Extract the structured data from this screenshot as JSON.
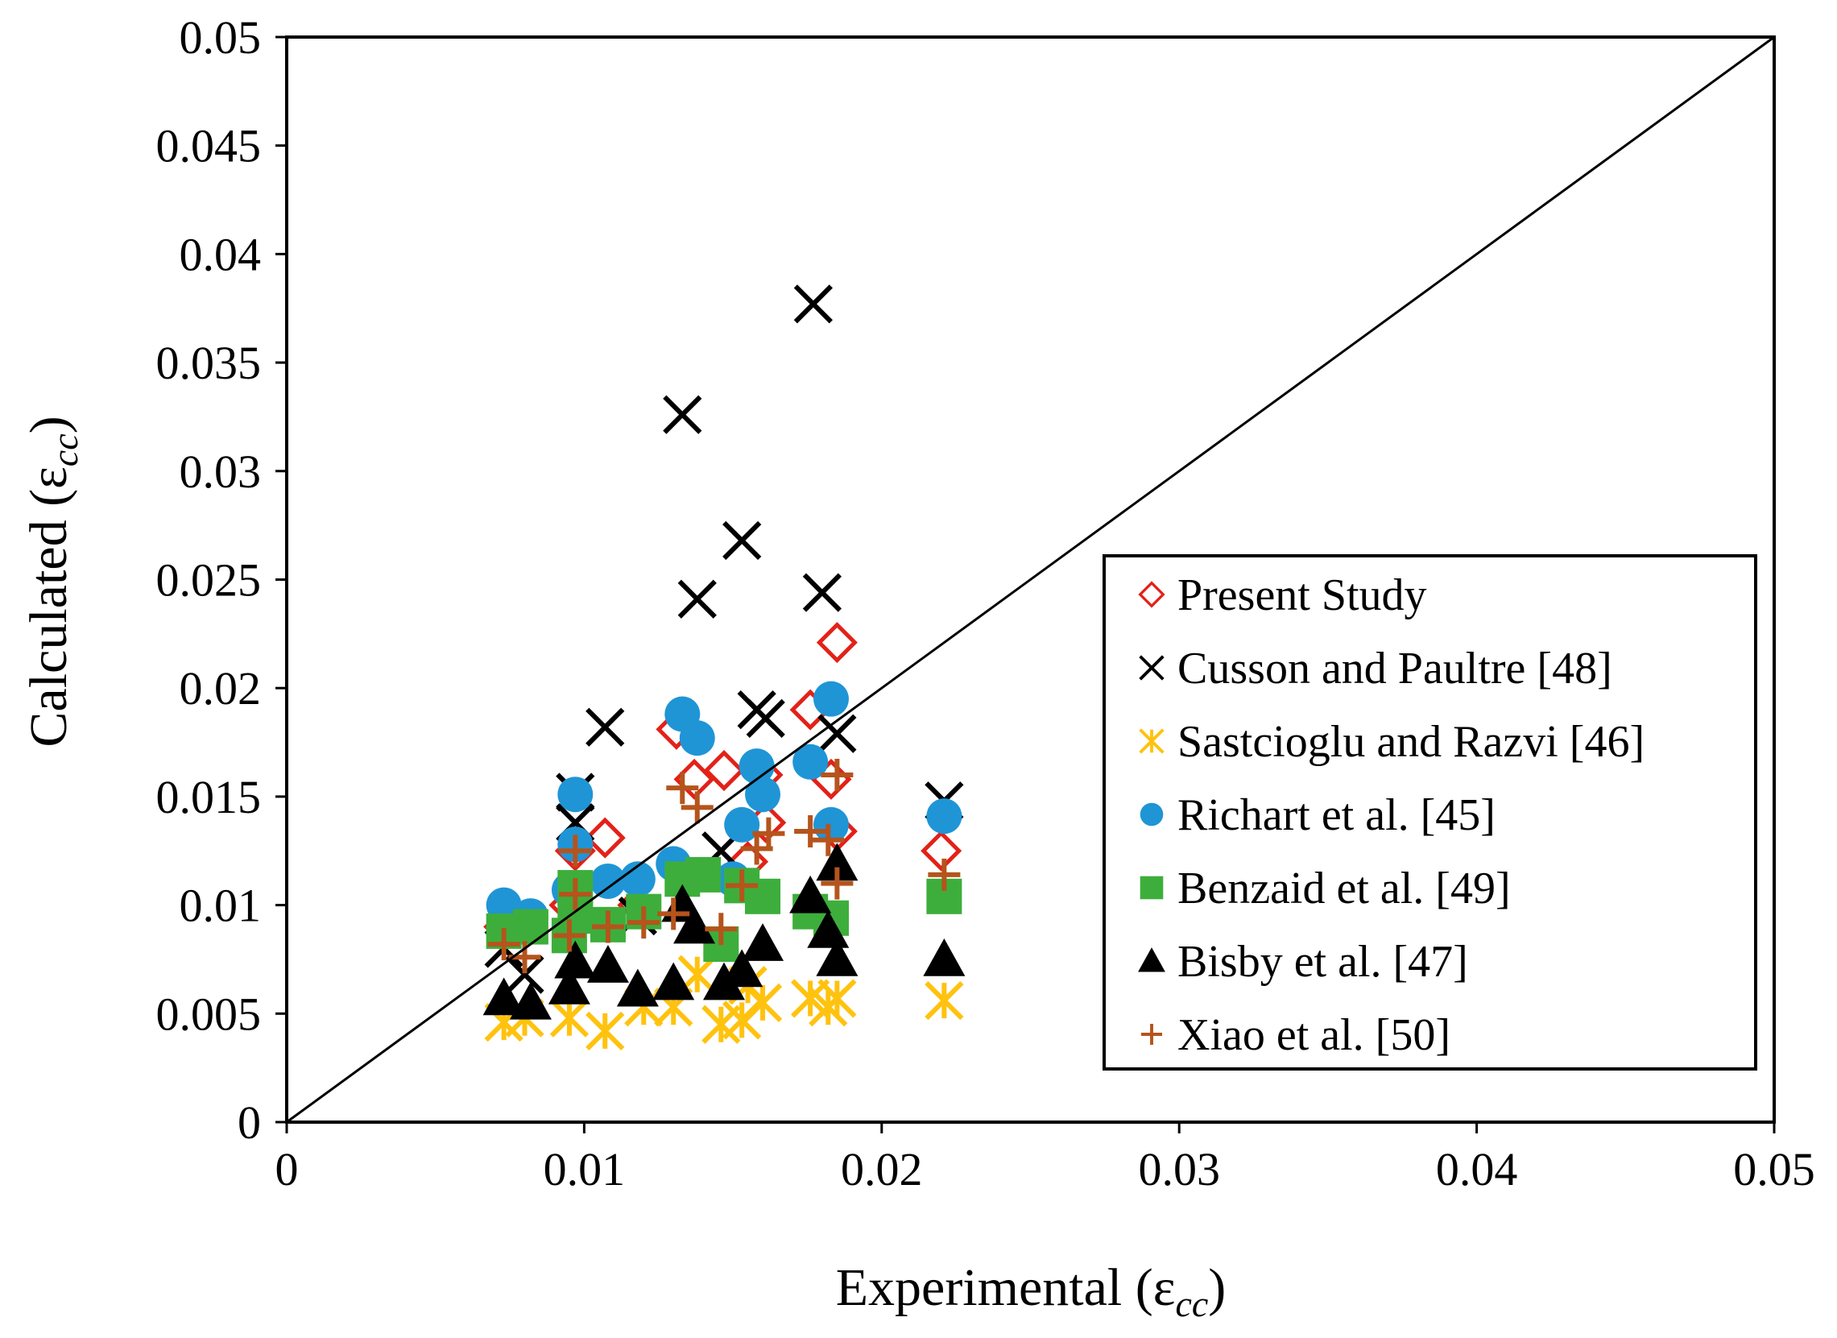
{
  "chart_data": {
    "type": "scatter",
    "title": "",
    "xlabel": "Experimental (ε",
    "xlabel_sub": "cc",
    "ylabel": "Calculated (ε",
    "ylabel_sub": "cc",
    "label_close": ")",
    "xlim": [
      0,
      0.05
    ],
    "ylim": [
      0,
      0.05
    ],
    "x_ticks": [
      "0",
      "0.01",
      "0.02",
      "0.03",
      "0.04",
      "0.05"
    ],
    "y_ticks": [
      "0",
      "0.005",
      "0.01",
      "0.015",
      "0.02",
      "0.025",
      "0.03",
      "0.035",
      "0.04",
      "0.045",
      "0.05"
    ],
    "reference_line": {
      "from": [
        0,
        0
      ],
      "to": [
        0.05,
        0.05
      ]
    },
    "legend_position": "bottom-right",
    "series": [
      {
        "name": "Present Study",
        "marker": "diamond-open",
        "color": "#e32118",
        "points": [
          [
            0.0073,
            0.009
          ],
          [
            0.0095,
            0.01
          ],
          [
            0.0097,
            0.0125
          ],
          [
            0.0107,
            0.0131
          ],
          [
            0.0118,
            0.01
          ],
          [
            0.0131,
            0.0181
          ],
          [
            0.0137,
            0.0158
          ],
          [
            0.0147,
            0.0162
          ],
          [
            0.0155,
            0.012
          ],
          [
            0.0161,
            0.0138
          ],
          [
            0.0176,
            0.019
          ],
          [
            0.0183,
            0.0158
          ],
          [
            0.0185,
            0.0134
          ],
          [
            0.0185,
            0.0221
          ],
          [
            0.022,
            0.0125
          ],
          [
            0.016,
            0.016
          ]
        ]
      },
      {
        "name": "Cusson and Paultre [48]",
        "marker": "x",
        "color": "#000000",
        "points": [
          [
            0.0073,
            0.008
          ],
          [
            0.008,
            0.0068
          ],
          [
            0.0097,
            0.0152
          ],
          [
            0.0097,
            0.0138
          ],
          [
            0.0107,
            0.0182
          ],
          [
            0.0118,
            0.0095
          ],
          [
            0.0133,
            0.0326
          ],
          [
            0.0138,
            0.0241
          ],
          [
            0.0146,
            0.0125
          ],
          [
            0.0153,
            0.0268
          ],
          [
            0.0158,
            0.019
          ],
          [
            0.0161,
            0.0186
          ],
          [
            0.0177,
            0.0377
          ],
          [
            0.018,
            0.0244
          ],
          [
            0.0185,
            0.0179
          ],
          [
            0.0221,
            0.0148
          ]
        ]
      },
      {
        "name": "Sastcioglu and Razvi [46]",
        "marker": "asterisk",
        "color": "#ffc20e",
        "points": [
          [
            0.0073,
            0.0046
          ],
          [
            0.008,
            0.0048
          ],
          [
            0.0095,
            0.0048
          ],
          [
            0.0107,
            0.0042
          ],
          [
            0.012,
            0.0053
          ],
          [
            0.013,
            0.0053
          ],
          [
            0.0138,
            0.0068
          ],
          [
            0.0146,
            0.0045
          ],
          [
            0.0153,
            0.0047
          ],
          [
            0.016,
            0.0055
          ],
          [
            0.0176,
            0.0057
          ],
          [
            0.0182,
            0.0053
          ],
          [
            0.0185,
            0.0057
          ],
          [
            0.0221,
            0.0056
          ],
          [
            0.0155,
            0.0063
          ]
        ]
      },
      {
        "name": "Richart et al. [45]",
        "marker": "circle",
        "color": "#1f95d6",
        "points": [
          [
            0.0073,
            0.01
          ],
          [
            0.0082,
            0.0095
          ],
          [
            0.0095,
            0.0107
          ],
          [
            0.0097,
            0.0151
          ],
          [
            0.0097,
            0.0128
          ],
          [
            0.0108,
            0.0111
          ],
          [
            0.0118,
            0.0112
          ],
          [
            0.013,
            0.0119
          ],
          [
            0.0133,
            0.0188
          ],
          [
            0.0138,
            0.0177
          ],
          [
            0.015,
            0.0112
          ],
          [
            0.0153,
            0.0137
          ],
          [
            0.0158,
            0.0164
          ],
          [
            0.016,
            0.0151
          ],
          [
            0.0176,
            0.0166
          ],
          [
            0.0183,
            0.0195
          ],
          [
            0.0183,
            0.0137
          ],
          [
            0.0221,
            0.0141
          ]
        ]
      },
      {
        "name": "Benzaid et al. [49]",
        "marker": "square",
        "color": "#3dae3b",
        "points": [
          [
            0.0073,
            0.0088
          ],
          [
            0.0082,
            0.009
          ],
          [
            0.0095,
            0.0086
          ],
          [
            0.0097,
            0.0108
          ],
          [
            0.0097,
            0.0095
          ],
          [
            0.0108,
            0.0091
          ],
          [
            0.012,
            0.0097
          ],
          [
            0.0133,
            0.0112
          ],
          [
            0.014,
            0.0114
          ],
          [
            0.0146,
            0.0082
          ],
          [
            0.0153,
            0.0109
          ],
          [
            0.016,
            0.0104
          ],
          [
            0.0176,
            0.0097
          ],
          [
            0.0183,
            0.0094
          ],
          [
            0.0221,
            0.0104
          ]
        ]
      },
      {
        "name": "Bisby et al. [47]",
        "marker": "triangle",
        "color": "#000000",
        "points": [
          [
            0.0073,
            0.0057
          ],
          [
            0.0082,
            0.0055
          ],
          [
            0.0095,
            0.0062
          ],
          [
            0.0097,
            0.0074
          ],
          [
            0.0108,
            0.0072
          ],
          [
            0.0118,
            0.0061
          ],
          [
            0.013,
            0.0064
          ],
          [
            0.0133,
            0.01
          ],
          [
            0.0137,
            0.009
          ],
          [
            0.0147,
            0.0064
          ],
          [
            0.0153,
            0.007
          ],
          [
            0.016,
            0.0082
          ],
          [
            0.0176,
            0.0104
          ],
          [
            0.0182,
            0.0088
          ],
          [
            0.0185,
            0.0119
          ],
          [
            0.0185,
            0.0075
          ],
          [
            0.0221,
            0.0075
          ]
        ]
      },
      {
        "name": "Xiao et al. [50]",
        "marker": "plus",
        "color": "#b5541c",
        "points": [
          [
            0.0073,
            0.0082
          ],
          [
            0.008,
            0.0076
          ],
          [
            0.0095,
            0.0086
          ],
          [
            0.0097,
            0.0105
          ],
          [
            0.0097,
            0.0125
          ],
          [
            0.0108,
            0.009
          ],
          [
            0.012,
            0.0092
          ],
          [
            0.013,
            0.0096
          ],
          [
            0.0133,
            0.0154
          ],
          [
            0.0138,
            0.0145
          ],
          [
            0.0146,
            0.0089
          ],
          [
            0.0153,
            0.0109
          ],
          [
            0.0158,
            0.0126
          ],
          [
            0.0162,
            0.0133
          ],
          [
            0.0176,
            0.0134
          ],
          [
            0.0182,
            0.013
          ],
          [
            0.0185,
            0.016
          ],
          [
            0.0185,
            0.011
          ],
          [
            0.0221,
            0.0114
          ]
        ]
      }
    ]
  }
}
